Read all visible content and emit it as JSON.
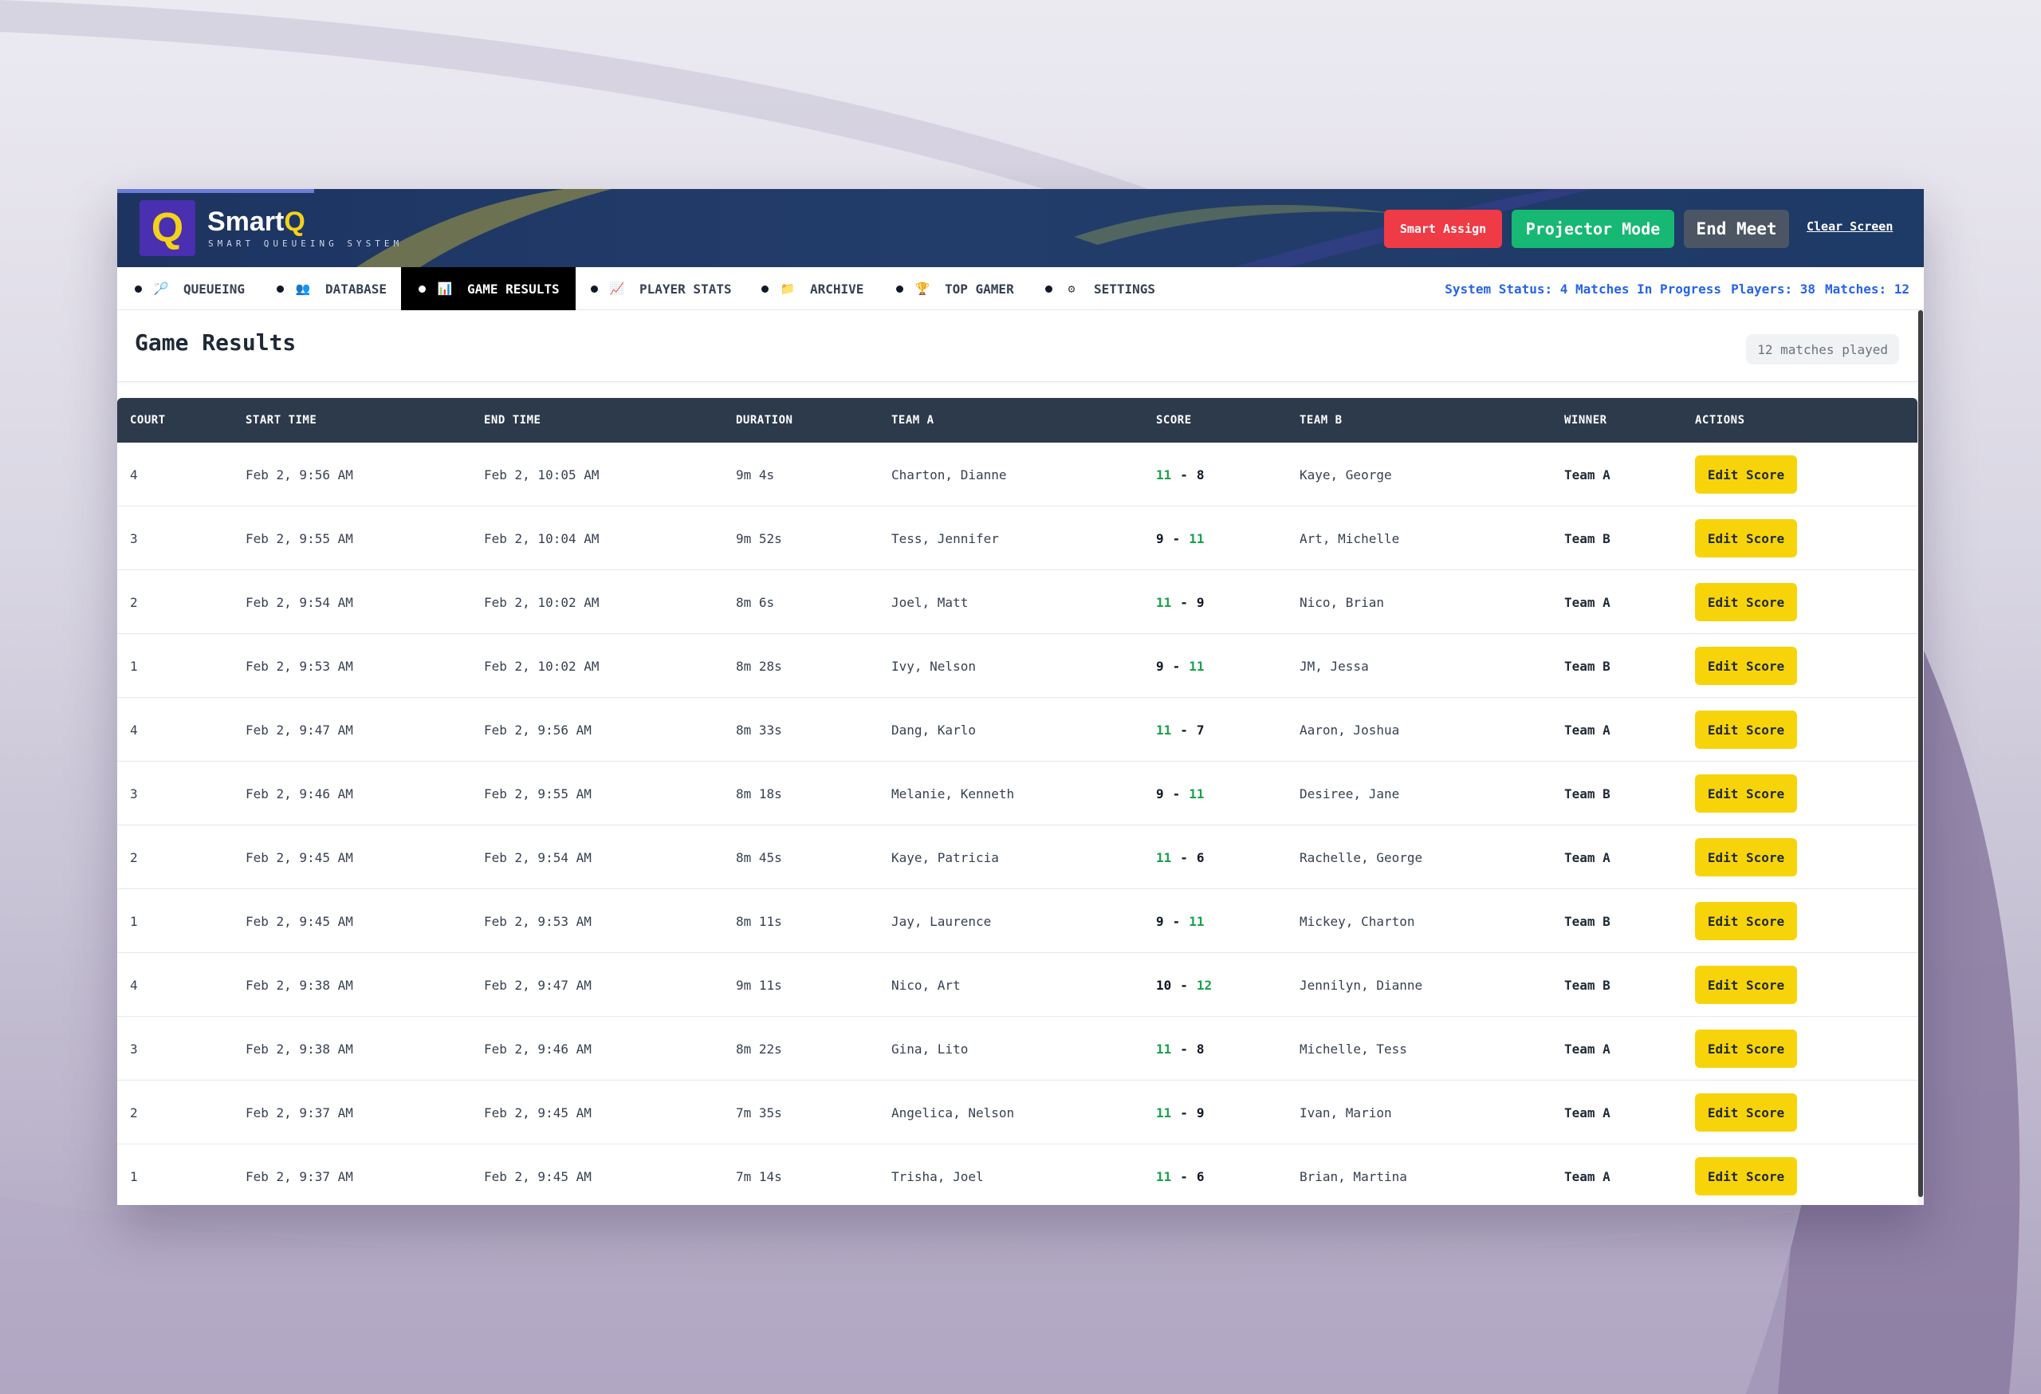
{
  "header": {
    "logo_letter": "Q",
    "brand_main": "Smart",
    "brand_accent": "Q",
    "brand_subtitle": "SMART QUEUEING SYSTEM",
    "buttons": {
      "smart_assign": "Smart Assign",
      "projector_mode": "Projector Mode",
      "end_meet": "End Meet",
      "clear_screen": "Clear Screen"
    },
    "colors": {
      "smart_assign": "#ef3b45",
      "projector_mode": "#16b873",
      "end_meet": "#4b5563",
      "logo_accent": "#f5d21a"
    }
  },
  "nav": {
    "items": [
      {
        "label": "QUEUEING",
        "icon": "racket-icon",
        "glyph": "🏸",
        "active": false
      },
      {
        "label": "DATABASE",
        "icon": "people-icon",
        "glyph": "👥",
        "active": false
      },
      {
        "label": "GAME RESULTS",
        "icon": "bar-chart-icon",
        "glyph": "📊",
        "active": true
      },
      {
        "label": "PLAYER STATS",
        "icon": "trend-chart-icon",
        "glyph": "📈",
        "active": false
      },
      {
        "label": "ARCHIVE",
        "icon": "folder-icon",
        "glyph": "📁",
        "active": false
      },
      {
        "label": "TOP GAMER",
        "icon": "trophy-icon",
        "glyph": "🏆",
        "active": false
      },
      {
        "label": "SETTINGS",
        "icon": "gear-icon",
        "glyph": "⚙",
        "active": false
      }
    ],
    "status": {
      "system_status": "System Status: 4 Matches In Progress",
      "players": "Players: 38",
      "matches": "Matches: 12"
    }
  },
  "page": {
    "title": "Game Results",
    "matches_badge": "12 matches played"
  },
  "table": {
    "headers": [
      "COURT",
      "START TIME",
      "END TIME",
      "DURATION",
      "TEAM A",
      "SCORE",
      "TEAM B",
      "WINNER",
      "ACTIONS"
    ],
    "action_label": "Edit Score",
    "rows": [
      {
        "court": "4",
        "start": "Feb 2, 9:56 AM",
        "end": "Feb 2, 10:05 AM",
        "duration": "9m 4s",
        "team_a": "Charton, Dianne",
        "score_a": "11",
        "score_b": "8",
        "team_b": "Kaye, George",
        "winner": "Team A"
      },
      {
        "court": "3",
        "start": "Feb 2, 9:55 AM",
        "end": "Feb 2, 10:04 AM",
        "duration": "9m 52s",
        "team_a": "Tess, Jennifer",
        "score_a": "9",
        "score_b": "11",
        "team_b": "Art, Michelle",
        "winner": "Team B"
      },
      {
        "court": "2",
        "start": "Feb 2, 9:54 AM",
        "end": "Feb 2, 10:02 AM",
        "duration": "8m 6s",
        "team_a": "Joel, Matt",
        "score_a": "11",
        "score_b": "9",
        "team_b": "Nico, Brian",
        "winner": "Team A"
      },
      {
        "court": "1",
        "start": "Feb 2, 9:53 AM",
        "end": "Feb 2, 10:02 AM",
        "duration": "8m 28s",
        "team_a": "Ivy, Nelson",
        "score_a": "9",
        "score_b": "11",
        "team_b": "JM, Jessa",
        "winner": "Team B"
      },
      {
        "court": "4",
        "start": "Feb 2, 9:47 AM",
        "end": "Feb 2, 9:56 AM",
        "duration": "8m 33s",
        "team_a": "Dang, Karlo",
        "score_a": "11",
        "score_b": "7",
        "team_b": "Aaron, Joshua",
        "winner": "Team A"
      },
      {
        "court": "3",
        "start": "Feb 2, 9:46 AM",
        "end": "Feb 2, 9:55 AM",
        "duration": "8m 18s",
        "team_a": "Melanie, Kenneth",
        "score_a": "9",
        "score_b": "11",
        "team_b": "Desiree, Jane",
        "winner": "Team B"
      },
      {
        "court": "2",
        "start": "Feb 2, 9:45 AM",
        "end": "Feb 2, 9:54 AM",
        "duration": "8m 45s",
        "team_a": "Kaye, Patricia",
        "score_a": "11",
        "score_b": "6",
        "team_b": "Rachelle, George",
        "winner": "Team A"
      },
      {
        "court": "1",
        "start": "Feb 2, 9:45 AM",
        "end": "Feb 2, 9:53 AM",
        "duration": "8m 11s",
        "team_a": "Jay, Laurence",
        "score_a": "9",
        "score_b": "11",
        "team_b": "Mickey, Charton",
        "winner": "Team B"
      },
      {
        "court": "4",
        "start": "Feb 2, 9:38 AM",
        "end": "Feb 2, 9:47 AM",
        "duration": "9m 11s",
        "team_a": "Nico, Art",
        "score_a": "10",
        "score_b": "12",
        "team_b": "Jennilyn, Dianne",
        "winner": "Team B"
      },
      {
        "court": "3",
        "start": "Feb 2, 9:38 AM",
        "end": "Feb 2, 9:46 AM",
        "duration": "8m 22s",
        "team_a": "Gina, Lito",
        "score_a": "11",
        "score_b": "8",
        "team_b": "Michelle, Tess",
        "winner": "Team A"
      },
      {
        "court": "2",
        "start": "Feb 2, 9:37 AM",
        "end": "Feb 2, 9:45 AM",
        "duration": "7m 35s",
        "team_a": "Angelica, Nelson",
        "score_a": "11",
        "score_b": "9",
        "team_b": "Ivan, Marion",
        "winner": "Team A"
      },
      {
        "court": "1",
        "start": "Feb 2, 9:37 AM",
        "end": "Feb 2, 9:45 AM",
        "duration": "7m 14s",
        "team_a": "Trisha, Joel",
        "score_a": "11",
        "score_b": "6",
        "team_b": "Brian, Martina",
        "winner": "Team A"
      }
    ]
  },
  "colors": {
    "header_bg": "#1d3461",
    "table_header_bg": "#2d3a4c",
    "winning_score": "#16a34a",
    "edit_button": "#f7d40a",
    "status_text": "#2563eb",
    "active_tab_bg": "#000000"
  }
}
